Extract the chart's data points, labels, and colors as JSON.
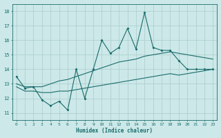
{
  "xlabel": "Humidex (Indice chaleur)",
  "xlim": [
    -0.5,
    23.5
  ],
  "ylim": [
    10.5,
    18.5
  ],
  "yticks": [
    11,
    12,
    13,
    14,
    15,
    16,
    17,
    18
  ],
  "xticks": [
    0,
    1,
    2,
    3,
    4,
    5,
    6,
    7,
    8,
    9,
    10,
    11,
    12,
    13,
    14,
    15,
    16,
    17,
    18,
    19,
    20,
    21,
    22,
    23
  ],
  "bg_color": "#cce8e8",
  "line_color": "#1a6b6b",
  "grid_color": "#aacccc",
  "line1_x": [
    0,
    1,
    2,
    3,
    4,
    5,
    6,
    7,
    8,
    9,
    10,
    11,
    12,
    13,
    14,
    15,
    16,
    17,
    18,
    19,
    20,
    21,
    22,
    23
  ],
  "line1_y": [
    13.5,
    12.7,
    12.8,
    11.9,
    11.5,
    11.8,
    11.2,
    14.0,
    12.0,
    14.0,
    16.0,
    15.1,
    15.5,
    16.8,
    15.4,
    17.9,
    15.5,
    15.3,
    15.3,
    14.6,
    14.0,
    14.0,
    14.0,
    14.0
  ],
  "line2_x": [
    0,
    1,
    2,
    3,
    4,
    5,
    6,
    7,
    8,
    9,
    10,
    11,
    12,
    13,
    14,
    15,
    16,
    17,
    18,
    19,
    20,
    21,
    22,
    23
  ],
  "line2_y": [
    13.0,
    12.8,
    12.8,
    12.8,
    13.0,
    13.2,
    13.3,
    13.5,
    13.7,
    13.9,
    14.1,
    14.3,
    14.5,
    14.6,
    14.7,
    14.9,
    15.0,
    15.1,
    15.2,
    15.1,
    15.0,
    14.9,
    14.8,
    14.7
  ],
  "line3_x": [
    0,
    1,
    2,
    3,
    4,
    5,
    6,
    7,
    8,
    9,
    10,
    11,
    12,
    13,
    14,
    15,
    16,
    17,
    18,
    19,
    20,
    21,
    22,
    23
  ],
  "line3_y": [
    12.8,
    12.5,
    12.5,
    12.4,
    12.4,
    12.5,
    12.5,
    12.6,
    12.7,
    12.8,
    12.9,
    13.0,
    13.1,
    13.2,
    13.3,
    13.4,
    13.5,
    13.6,
    13.7,
    13.6,
    13.7,
    13.8,
    13.9,
    14.0
  ]
}
